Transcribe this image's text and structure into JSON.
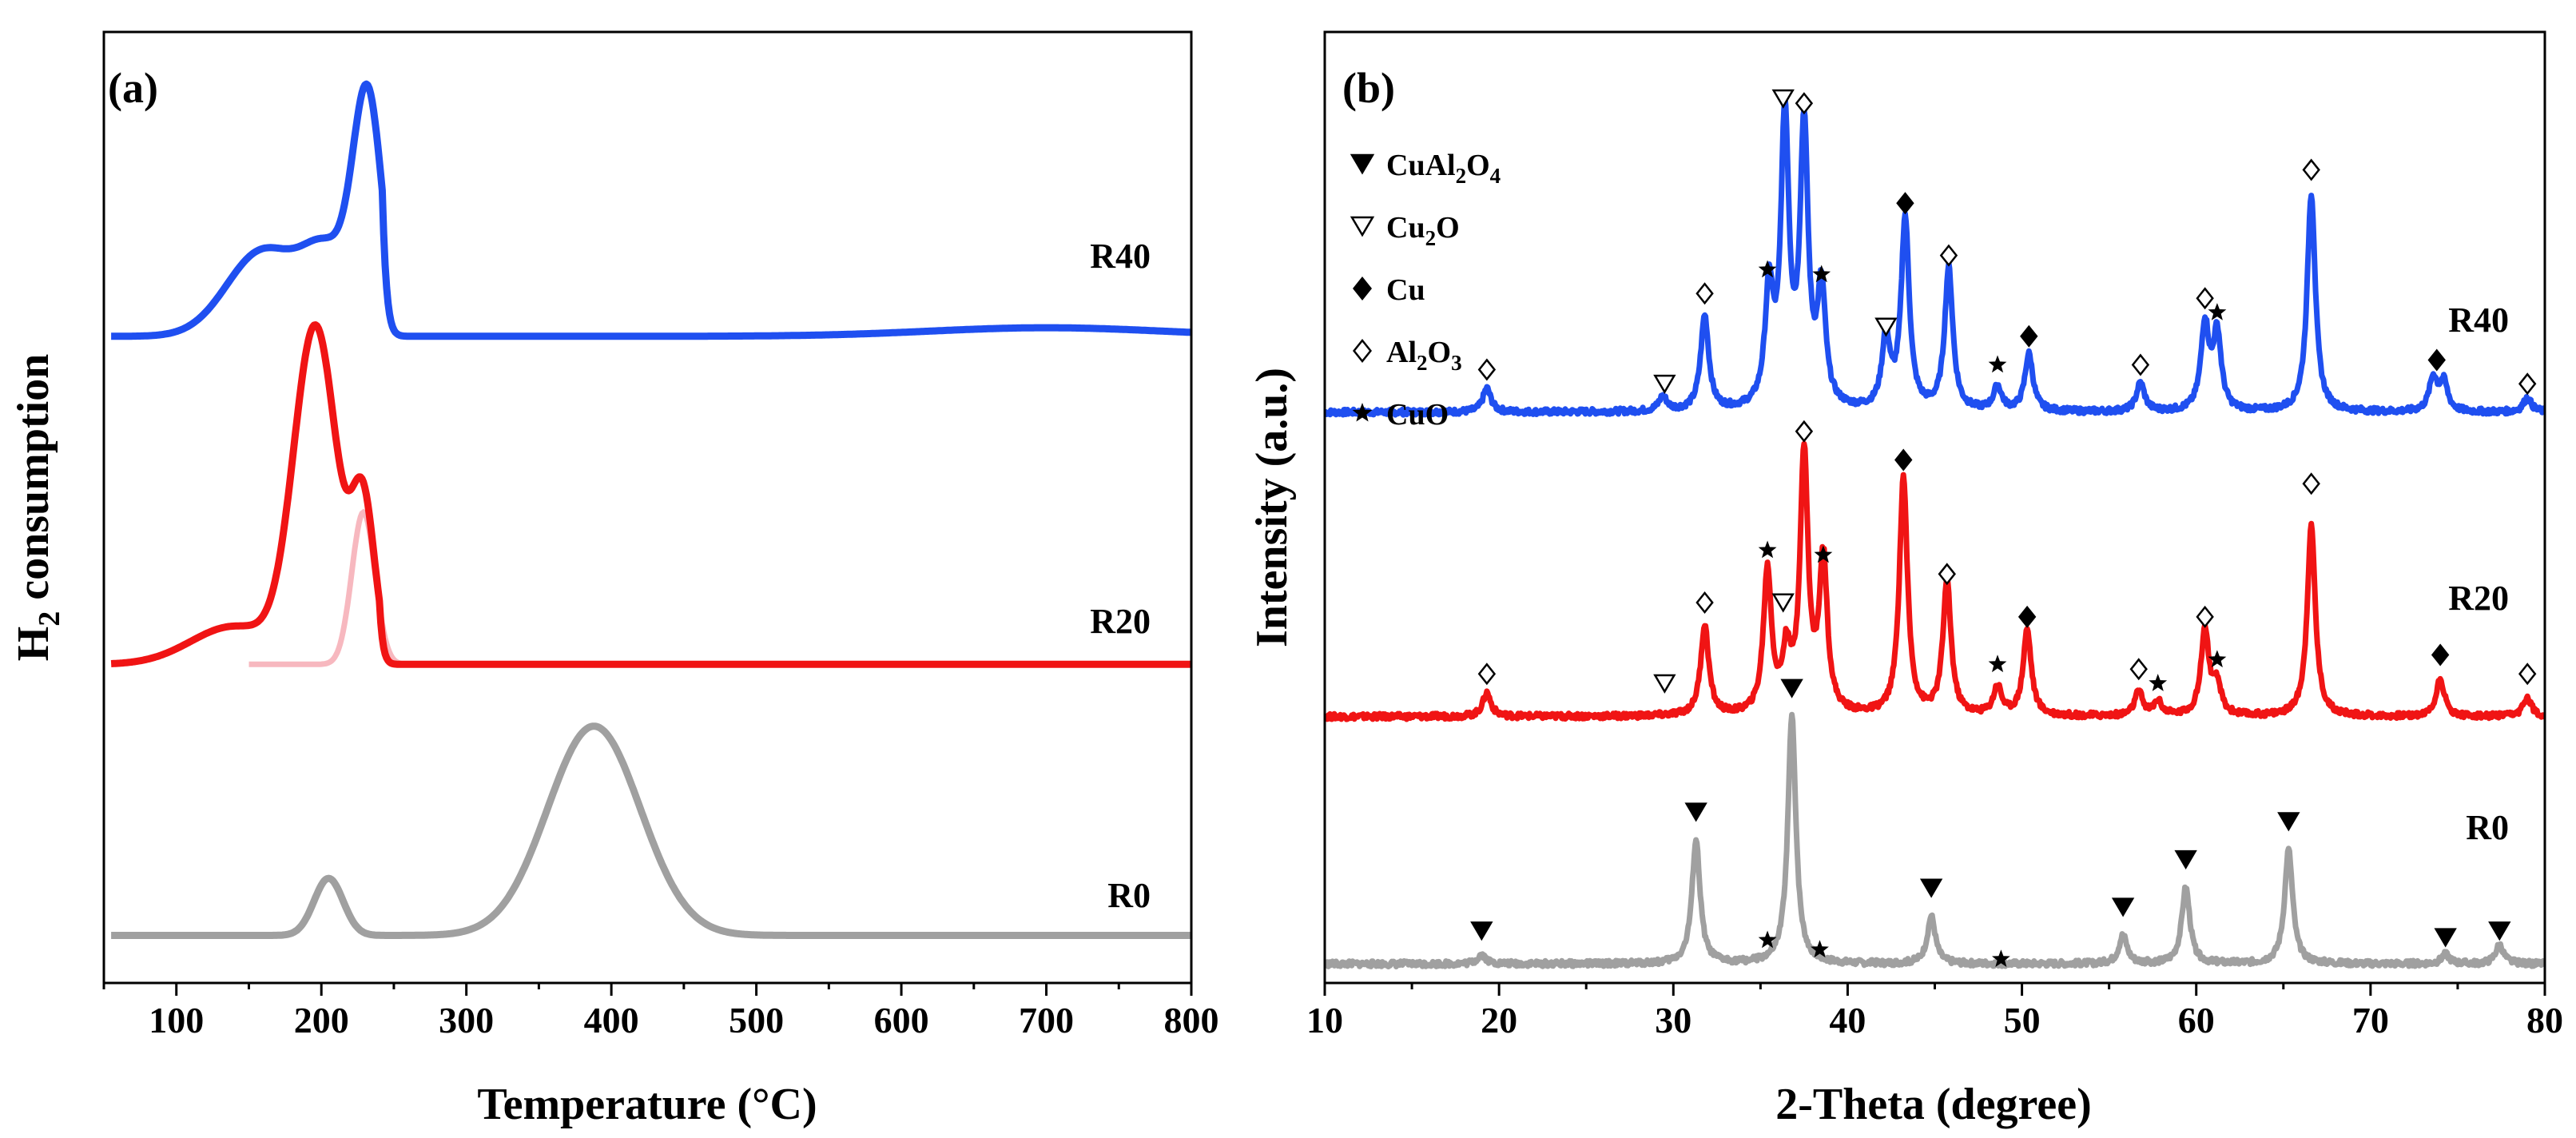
{
  "chart_data": [
    {
      "type": "line",
      "panel_label": "(a)",
      "xlabel": "Temperature (°C)",
      "ylabel_main": "H",
      "ylabel_sub": "2",
      "ylabel_rest": " consumption",
      "xlim": [
        50,
        800
      ],
      "ylim": [
        0,
        100
      ],
      "xticks": [
        "100",
        "200",
        "300",
        "400",
        "500",
        "600",
        "700",
        "800"
      ],
      "series": [
        {
          "name": "R40",
          "color": "#1f4ff0",
          "offset": 68,
          "peaks": [
            {
              "center": 232,
              "height": 24,
              "width": 10
            },
            {
              "center": 205,
              "height": 8,
              "width": 17
            },
            {
              "center": 160,
              "height": 9,
              "width": 25
            },
            {
              "center": 700,
              "height": 0.9,
              "width": 80
            }
          ],
          "cutoff_above": 242
        },
        {
          "name": "R20",
          "color": "#f01414",
          "offset": 33.5,
          "peaks": [
            {
              "center": 196,
              "height": 35,
              "width": 15
            },
            {
              "center": 229,
              "height": 16,
              "width": 8
            },
            {
              "center": 140,
              "height": 4,
              "width": 30
            }
          ],
          "cutoff_above": 240
        },
        {
          "name": "R0",
          "color": "#a0a0a0",
          "offset": 5,
          "peaks": [
            {
              "center": 205,
              "height": 6,
              "width": 10
            },
            {
              "center": 388,
              "height": 22,
              "width": 32
            }
          ]
        }
      ],
      "fit_components": [
        {
          "series": "R20",
          "color": "#f7b8bf",
          "center": 229,
          "height": 16,
          "width": 8
        }
      ]
    },
    {
      "type": "line",
      "panel_label": "(b)",
      "xlabel": "2-Theta (degree)",
      "ylabel": "Intensity (a.u.)",
      "xlim": [
        10,
        80
      ],
      "ylim": [
        0,
        100
      ],
      "xticks": [
        "10",
        "20",
        "30",
        "40",
        "50",
        "60",
        "70",
        "80"
      ],
      "legend": {
        "position": "top-left",
        "entries": [
          {
            "symbol": "tri-down-filled",
            "label_main": "CuAl",
            "sub1": "2",
            "mid": "O",
            "sub2": "4"
          },
          {
            "symbol": "tri-down-open",
            "label_main": "Cu",
            "sub1": "2",
            "mid": "O",
            "sub2": ""
          },
          {
            "symbol": "diamond-filled",
            "label_main": "Cu",
            "sub1": "",
            "mid": "",
            "sub2": ""
          },
          {
            "symbol": "diamond-open",
            "label_main": "Al",
            "sub1": "2",
            "mid": "O",
            "sub2": "3"
          },
          {
            "symbol": "star",
            "label_main": "CuO",
            "sub1": "",
            "mid": "",
            "sub2": ""
          }
        ]
      },
      "series": [
        {
          "name": "R40",
          "color": "#1f4ff0",
          "offset": 60,
          "peaks": [
            [
              19.3,
              2.5
            ],
            [
              29.4,
              1.5
            ],
            [
              31.8,
              10
            ],
            [
              35.5,
              12
            ],
            [
              36.4,
              30
            ],
            [
              37.5,
              29
            ],
            [
              38.5,
              12
            ],
            [
              42.2,
              7.5
            ],
            [
              43.3,
              20
            ],
            [
              45.8,
              15
            ],
            [
              48.6,
              2.5
            ],
            [
              50.4,
              6
            ],
            [
              56.8,
              3
            ],
            [
              60.5,
              9
            ],
            [
              61.2,
              8
            ],
            [
              66.6,
              23
            ],
            [
              73.6,
              3.5
            ],
            [
              74.2,
              3
            ],
            [
              79.0,
              1.5
            ]
          ]
        },
        {
          "name": "R20",
          "color": "#f01414",
          "offset": 28,
          "peaks": [
            [
              19.3,
              2.5
            ],
            [
              31.8,
              9.5
            ],
            [
              35.4,
              15
            ],
            [
              36.5,
              6
            ],
            [
              37.5,
              27
            ],
            [
              38.6,
              16
            ],
            [
              43.2,
              25
            ],
            [
              45.7,
              14
            ],
            [
              48.6,
              3
            ],
            [
              50.3,
              9
            ],
            [
              56.7,
              2.5
            ],
            [
              57.8,
              1.5
            ],
            [
              60.5,
              9
            ],
            [
              61.2,
              3
            ],
            [
              66.6,
              20
            ],
            [
              74.0,
              4
            ],
            [
              79.0,
              2
            ]
          ]
        },
        {
          "name": "R0",
          "color": "#a0a0a0",
          "offset": 2,
          "peaks": [
            [
              19.0,
              1
            ],
            [
              31.3,
              13
            ],
            [
              36.8,
              26
            ],
            [
              44.8,
              5
            ],
            [
              55.8,
              3
            ],
            [
              59.4,
              8
            ],
            [
              65.3,
              12
            ],
            [
              74.3,
              1
            ],
            [
              77.4,
              2
            ]
          ]
        }
      ],
      "markers": [
        {
          "type": "tri-down-filled",
          "x": 19.0,
          "y": 5.5
        },
        {
          "type": "tri-down-filled",
          "x": 31.3,
          "y": 18
        },
        {
          "type": "tri-down-filled",
          "x": 36.8,
          "y": 31
        },
        {
          "type": "tri-down-filled",
          "x": 44.8,
          "y": 10
        },
        {
          "type": "tri-down-filled",
          "x": 55.8,
          "y": 8
        },
        {
          "type": "tri-down-filled",
          "x": 59.4,
          "y": 13
        },
        {
          "type": "tri-down-filled",
          "x": 65.3,
          "y": 17
        },
        {
          "type": "tri-down-filled",
          "x": 74.3,
          "y": 4.8
        },
        {
          "type": "tri-down-filled",
          "x": 77.4,
          "y": 5.5
        },
        {
          "type": "star",
          "x": 35.4,
          "y": 4.5
        },
        {
          "type": "star",
          "x": 38.4,
          "y": 3.5
        },
        {
          "type": "star",
          "x": 48.8,
          "y": 2.5
        },
        {
          "type": "diamond-open",
          "x": 19.3,
          "y": 32.5
        },
        {
          "type": "tri-down-open",
          "x": 29.5,
          "y": 31.5
        },
        {
          "type": "diamond-open",
          "x": 31.8,
          "y": 40
        },
        {
          "type": "star",
          "x": 35.4,
          "y": 45.5
        },
        {
          "type": "tri-down-open",
          "x": 36.3,
          "y": 40
        },
        {
          "type": "diamond-open",
          "x": 37.5,
          "y": 58
        },
        {
          "type": "star",
          "x": 38.6,
          "y": 45
        },
        {
          "type": "diamond-filled",
          "x": 43.2,
          "y": 55
        },
        {
          "type": "diamond-open",
          "x": 45.7,
          "y": 43
        },
        {
          "type": "star",
          "x": 48.6,
          "y": 33.5
        },
        {
          "type": "diamond-filled",
          "x": 50.3,
          "y": 38.5
        },
        {
          "type": "diamond-open",
          "x": 56.7,
          "y": 33
        },
        {
          "type": "star",
          "x": 57.8,
          "y": 31.5
        },
        {
          "type": "diamond-open",
          "x": 60.5,
          "y": 38.5
        },
        {
          "type": "star",
          "x": 61.2,
          "y": 34
        },
        {
          "type": "diamond-open",
          "x": 66.6,
          "y": 52.5
        },
        {
          "type": "diamond-filled",
          "x": 74.0,
          "y": 34.5
        },
        {
          "type": "diamond-open",
          "x": 79.0,
          "y": 32.5
        },
        {
          "type": "diamond-open",
          "x": 19.3,
          "y": 64.5
        },
        {
          "type": "tri-down-open",
          "x": 29.5,
          "y": 63
        },
        {
          "type": "diamond-open",
          "x": 31.8,
          "y": 72.5
        },
        {
          "type": "star",
          "x": 35.4,
          "y": 75
        },
        {
          "type": "tri-down-open",
          "x": 36.3,
          "y": 93
        },
        {
          "type": "diamond-open",
          "x": 37.5,
          "y": 92.5
        },
        {
          "type": "star",
          "x": 38.5,
          "y": 74.5
        },
        {
          "type": "tri-down-open",
          "x": 42.2,
          "y": 69
        },
        {
          "type": "diamond-filled",
          "x": 43.3,
          "y": 82
        },
        {
          "type": "diamond-open",
          "x": 45.8,
          "y": 76.5
        },
        {
          "type": "star",
          "x": 48.6,
          "y": 65
        },
        {
          "type": "diamond-filled",
          "x": 50.4,
          "y": 68
        },
        {
          "type": "diamond-open",
          "x": 56.8,
          "y": 65
        },
        {
          "type": "diamond-open",
          "x": 60.5,
          "y": 72
        },
        {
          "type": "star",
          "x": 61.2,
          "y": 70.5
        },
        {
          "type": "diamond-open",
          "x": 66.6,
          "y": 85.5
        },
        {
          "type": "diamond-filled",
          "x": 73.8,
          "y": 65.5
        },
        {
          "type": "diamond-open",
          "x": 79.0,
          "y": 63
        }
      ]
    }
  ]
}
